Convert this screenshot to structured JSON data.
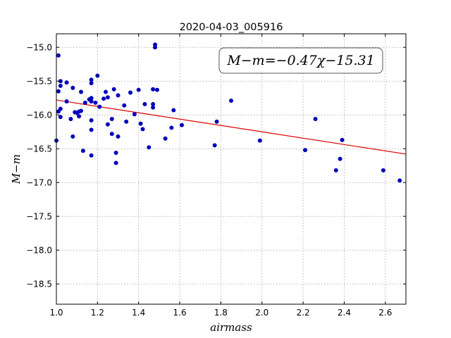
{
  "chart_data": {
    "type": "scatter",
    "title": "2020-04-03_005916",
    "xlabel": "airmass",
    "ylabel": "M−m",
    "xlim": [
      1.0,
      2.7
    ],
    "ylim": [
      -18.8,
      -14.8
    ],
    "y_inverted": true,
    "grid": true,
    "xticks": [
      1.0,
      1.2,
      1.4,
      1.6,
      1.8,
      2.0,
      2.2,
      2.4,
      2.6
    ],
    "xtick_labels": [
      "1.0",
      "1.2",
      "1.4",
      "1.6",
      "1.8",
      "2.0",
      "2.2",
      "2.4",
      "2.6"
    ],
    "yticks": [
      -15.0,
      -15.5,
      -16.0,
      -16.5,
      -17.0,
      -17.5,
      -18.0,
      -18.5
    ],
    "ytick_labels": [
      "−15.0",
      "−15.5",
      "−16.0",
      "−16.5",
      "−17.0",
      "−17.5",
      "−18.0",
      "−18.5"
    ],
    "annotation": "M−m=−0.47χ−15.31",
    "annotation_position": "top-right",
    "fit": {
      "slope": -0.47,
      "intercept": -15.31,
      "color": "#dd0000"
    },
    "point_color": "#0000bb",
    "points": [
      {
        "x": 1.0,
        "y": -16.38
      },
      {
        "x": 1.01,
        "y": -15.12
      },
      {
        "x": 1.01,
        "y": -15.65
      },
      {
        "x": 1.01,
        "y": -15.95
      },
      {
        "x": 1.02,
        "y": -15.5
      },
      {
        "x": 1.02,
        "y": -15.57
      },
      {
        "x": 1.02,
        "y": -15.91
      },
      {
        "x": 1.02,
        "y": -16.03
      },
      {
        "x": 1.05,
        "y": -15.8
      },
      {
        "x": 1.05,
        "y": -15.52
      },
      {
        "x": 1.07,
        "y": -16.06
      },
      {
        "x": 1.08,
        "y": -15.6
      },
      {
        "x": 1.08,
        "y": -16.32
      },
      {
        "x": 1.09,
        "y": -15.96
      },
      {
        "x": 1.1,
        "y": -15.97
      },
      {
        "x": 1.11,
        "y": -16.02
      },
      {
        "x": 1.11,
        "y": -15.95
      },
      {
        "x": 1.12,
        "y": -15.94
      },
      {
        "x": 1.12,
        "y": -15.66
      },
      {
        "x": 1.13,
        "y": -16.53
      },
      {
        "x": 1.14,
        "y": -15.82
      },
      {
        "x": 1.16,
        "y": -15.77
      },
      {
        "x": 1.17,
        "y": -15.48
      },
      {
        "x": 1.17,
        "y": -15.53
      },
      {
        "x": 1.17,
        "y": -15.75
      },
      {
        "x": 1.17,
        "y": -15.8
      },
      {
        "x": 1.17,
        "y": -16.08
      },
      {
        "x": 1.17,
        "y": -16.22
      },
      {
        "x": 1.17,
        "y": -16.6
      },
      {
        "x": 1.19,
        "y": -15.82
      },
      {
        "x": 1.2,
        "y": -15.42
      },
      {
        "x": 1.21,
        "y": -15.88
      },
      {
        "x": 1.23,
        "y": -15.76
      },
      {
        "x": 1.24,
        "y": -15.66
      },
      {
        "x": 1.25,
        "y": -15.74
      },
      {
        "x": 1.25,
        "y": -16.14
      },
      {
        "x": 1.27,
        "y": -16.06
      },
      {
        "x": 1.27,
        "y": -16.28
      },
      {
        "x": 1.28,
        "y": -15.62
      },
      {
        "x": 1.29,
        "y": -16.56
      },
      {
        "x": 1.29,
        "y": -16.71
      },
      {
        "x": 1.3,
        "y": -15.71
      },
      {
        "x": 1.3,
        "y": -16.32
      },
      {
        "x": 1.33,
        "y": -15.86
      },
      {
        "x": 1.34,
        "y": -16.1
      },
      {
        "x": 1.36,
        "y": -15.67
      },
      {
        "x": 1.38,
        "y": -15.99
      },
      {
        "x": 1.4,
        "y": -15.63
      },
      {
        "x": 1.41,
        "y": -16.13
      },
      {
        "x": 1.42,
        "y": -16.21
      },
      {
        "x": 1.43,
        "y": -15.84
      },
      {
        "x": 1.45,
        "y": -16.48
      },
      {
        "x": 1.47,
        "y": -15.62
      },
      {
        "x": 1.47,
        "y": -15.84
      },
      {
        "x": 1.47,
        "y": -15.89
      },
      {
        "x": 1.48,
        "y": -14.96
      },
      {
        "x": 1.48,
        "y": -15.0
      },
      {
        "x": 1.49,
        "y": -15.63
      },
      {
        "x": 1.53,
        "y": -16.35
      },
      {
        "x": 1.56,
        "y": -16.19
      },
      {
        "x": 1.57,
        "y": -15.93
      },
      {
        "x": 1.61,
        "y": -16.15
      },
      {
        "x": 1.77,
        "y": -16.45
      },
      {
        "x": 1.78,
        "y": -16.1
      },
      {
        "x": 1.85,
        "y": -15.79
      },
      {
        "x": 1.99,
        "y": -16.38
      },
      {
        "x": 2.21,
        "y": -16.52
      },
      {
        "x": 2.26,
        "y": -16.06
      },
      {
        "x": 2.36,
        "y": -16.82
      },
      {
        "x": 2.38,
        "y": -16.65
      },
      {
        "x": 2.39,
        "y": -16.37
      },
      {
        "x": 2.59,
        "y": -16.82
      },
      {
        "x": 2.67,
        "y": -16.97
      }
    ]
  }
}
